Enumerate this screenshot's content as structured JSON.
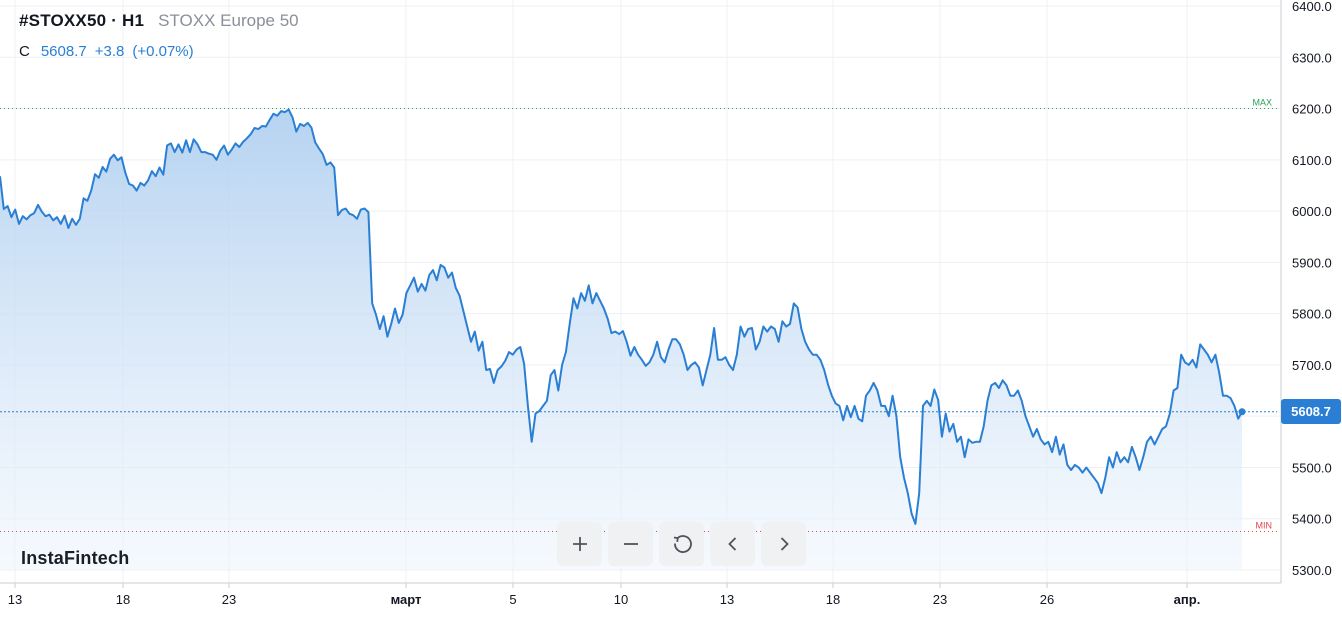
{
  "header": {
    "symbol": "#STOXX50 · H1",
    "instrument_name": "STOXX Europe 50",
    "price_label": "C",
    "last_price": "5608.7",
    "change": "+3.8",
    "change_pct": "(+0.07%)"
  },
  "watermark": "InstaFintech",
  "markers": {
    "max_label": "MAX",
    "min_label": "MIN"
  },
  "toolbar": {
    "zoom_in_icon": "plus-icon",
    "zoom_out_icon": "minus-icon",
    "reset_icon": "reset-icon",
    "scroll_left_icon": "chevron-left-icon",
    "scroll_right_icon": "chevron-right-icon"
  },
  "colors": {
    "line": "#2a7fd4",
    "area_top": "#a9cbee",
    "area_bottom": "#eef5fd",
    "max_line": "#27a05a",
    "min_line": "#e0464e",
    "current_line": "#2a7fd4",
    "grid": "#eef0f3",
    "axis_text": "#131722"
  },
  "chart_data": {
    "type": "area",
    "title": "STOXX Europe 50",
    "ylim": [
      5300,
      6400
    ],
    "y_ticks": [
      6400.0,
      6300.0,
      6200.0,
      6100.0,
      6000.0,
      5900.0,
      5800.0,
      5700.0,
      5600.0,
      5500.0,
      5400.0,
      5300.0
    ],
    "y_tick_labels": [
      "6400.0",
      "6300.0",
      "6200.0",
      "6100.0",
      "6000.0",
      "5900.0",
      "5800.0",
      "5700.0",
      "5600.0",
      "5500.0",
      "5400.0",
      "5300.0"
    ],
    "x_tick_labels": [
      "13",
      "18",
      "23",
      "март",
      "5",
      "10",
      "13",
      "18",
      "23",
      "26",
      "апр."
    ],
    "max_level": 6200,
    "min_level": 5375,
    "current_value": 5608.7,
    "current_label": "5608.7",
    "grid": true,
    "series": [
      {
        "values": [
          6068,
          6004,
          6010,
          5988,
          6003,
          5975,
          5990,
          5984,
          5992,
          5996,
          6012,
          5999,
          5990,
          5993,
          5982,
          5988,
          5975,
          5991,
          5967,
          5985,
          5973,
          5985,
          6025,
          6020,
          6040,
          6072,
          6065,
          6086,
          6077,
          6102,
          6110,
          6099,
          6105,
          6075,
          6053,
          6050,
          6040,
          6055,
          6050,
          6060,
          6078,
          6068,
          6085,
          6071,
          6128,
          6132,
          6115,
          6130,
          6114,
          6138,
          6115,
          6140,
          6130,
          6115,
          6115,
          6112,
          6110,
          6100,
          6118,
          6128,
          6110,
          6120,
          6132,
          6125,
          6135,
          6142,
          6150,
          6162,
          6160,
          6166,
          6165,
          6178,
          6190,
          6186,
          6195,
          6193,
          6198,
          6183,
          6155,
          6170,
          6166,
          6172,
          6163,
          6134,
          6122,
          6111,
          6090,
          6095,
          6085,
          5992,
          6002,
          6005,
          5995,
          5992,
          5985,
          6003,
          6005,
          5998,
          5820,
          5798,
          5770,
          5795,
          5755,
          5780,
          5810,
          5782,
          5798,
          5840,
          5855,
          5870,
          5843,
          5858,
          5845,
          5875,
          5885,
          5865,
          5895,
          5890,
          5870,
          5880,
          5850,
          5835,
          5805,
          5775,
          5745,
          5765,
          5728,
          5745,
          5690,
          5692,
          5665,
          5690,
          5697,
          5708,
          5725,
          5720,
          5730,
          5735,
          5702,
          5620,
          5550,
          5605,
          5610,
          5620,
          5630,
          5680,
          5690,
          5650,
          5700,
          5725,
          5780,
          5830,
          5810,
          5840,
          5825,
          5855,
          5820,
          5840,
          5825,
          5810,
          5790,
          5762,
          5765,
          5760,
          5766,
          5745,
          5718,
          5735,
          5720,
          5710,
          5698,
          5705,
          5720,
          5745,
          5715,
          5705,
          5730,
          5750,
          5750,
          5740,
          5720,
          5690,
          5700,
          5705,
          5695,
          5660,
          5690,
          5720,
          5772,
          5710,
          5710,
          5715,
          5700,
          5690,
          5720,
          5775,
          5755,
          5770,
          5772,
          5730,
          5745,
          5775,
          5765,
          5775,
          5770,
          5745,
          5785,
          5775,
          5780,
          5820,
          5812,
          5770,
          5745,
          5730,
          5720,
          5720,
          5710,
          5690,
          5662,
          5640,
          5625,
          5620,
          5592,
          5620,
          5598,
          5620,
          5595,
          5590,
          5640,
          5650,
          5665,
          5650,
          5620,
          5620,
          5600,
          5640,
          5600,
          5520,
          5480,
          5450,
          5410,
          5390,
          5450,
          5620,
          5630,
          5620,
          5652,
          5632,
          5560,
          5605,
          5570,
          5585,
          5550,
          5560,
          5520,
          5555,
          5548,
          5550,
          5550,
          5580,
          5630,
          5660,
          5665,
          5655,
          5670,
          5660,
          5640,
          5640,
          5650,
          5630,
          5600,
          5580,
          5560,
          5575,
          5555,
          5545,
          5550,
          5530,
          5560,
          5525,
          5545,
          5505,
          5495,
          5505,
          5500,
          5490,
          5500,
          5490,
          5480,
          5470,
          5450,
          5480,
          5520,
          5500,
          5530,
          5510,
          5520,
          5510,
          5540,
          5520,
          5495,
          5520,
          5550,
          5560,
          5545,
          5560,
          5575,
          5580,
          5605,
          5650,
          5655,
          5720,
          5705,
          5700,
          5710,
          5695,
          5740,
          5730,
          5720,
          5705,
          5720,
          5685,
          5640,
          5640,
          5635,
          5620,
          5595,
          5608.7
        ]
      }
    ]
  }
}
